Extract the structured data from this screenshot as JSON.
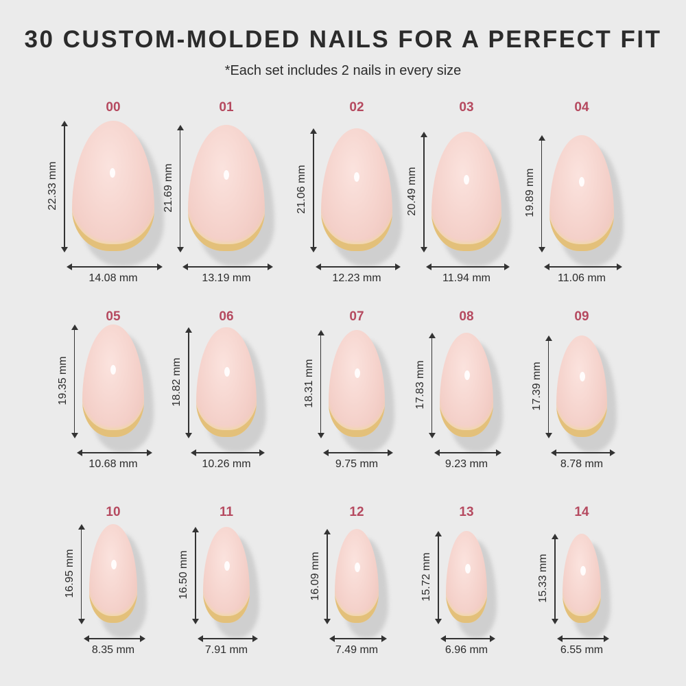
{
  "title": "30 CUSTOM-MOLDED NAILS FOR A PERFECT FIT",
  "subtitle": "*Each set includes 2 nails in every size",
  "colors": {
    "size_label": "#b5495f",
    "nail": "#f4d0c9",
    "tip": "#e3c07a",
    "background": "#ebebeb"
  },
  "nails": [
    {
      "size": "00",
      "length": "22.33 mm",
      "width": "14.08 mm"
    },
    {
      "size": "01",
      "length": "21.69 mm",
      "width": "13.19 mm"
    },
    {
      "size": "02",
      "length": "21.06 mm",
      "width": "12.23 mm"
    },
    {
      "size": "03",
      "length": "20.49 mm",
      "width": "11.94 mm"
    },
    {
      "size": "04",
      "length": "19.89 mm",
      "width": "11.06 mm"
    },
    {
      "size": "05",
      "length": "19.35 mm",
      "width": "10.68 mm"
    },
    {
      "size": "06",
      "length": "18.82 mm",
      "width": "10.26 mm"
    },
    {
      "size": "07",
      "length": "18.31 mm",
      "width": "9.75 mm"
    },
    {
      "size": "08",
      "length": "17.83 mm",
      "width": "9.23 mm"
    },
    {
      "size": "09",
      "length": "17.39 mm",
      "width": "8.78 mm"
    },
    {
      "size": "10",
      "length": "16.95 mm",
      "width": "8.35 mm"
    },
    {
      "size": "11",
      "length": "16.50 mm",
      "width": "7.91 mm"
    },
    {
      "size": "12",
      "length": "16.09 mm",
      "width": "7.49 mm"
    },
    {
      "size": "13",
      "length": "15.72 mm",
      "width": "6.96 mm"
    },
    {
      "size": "14",
      "length": "15.33 mm",
      "width": "6.55 mm"
    }
  ]
}
